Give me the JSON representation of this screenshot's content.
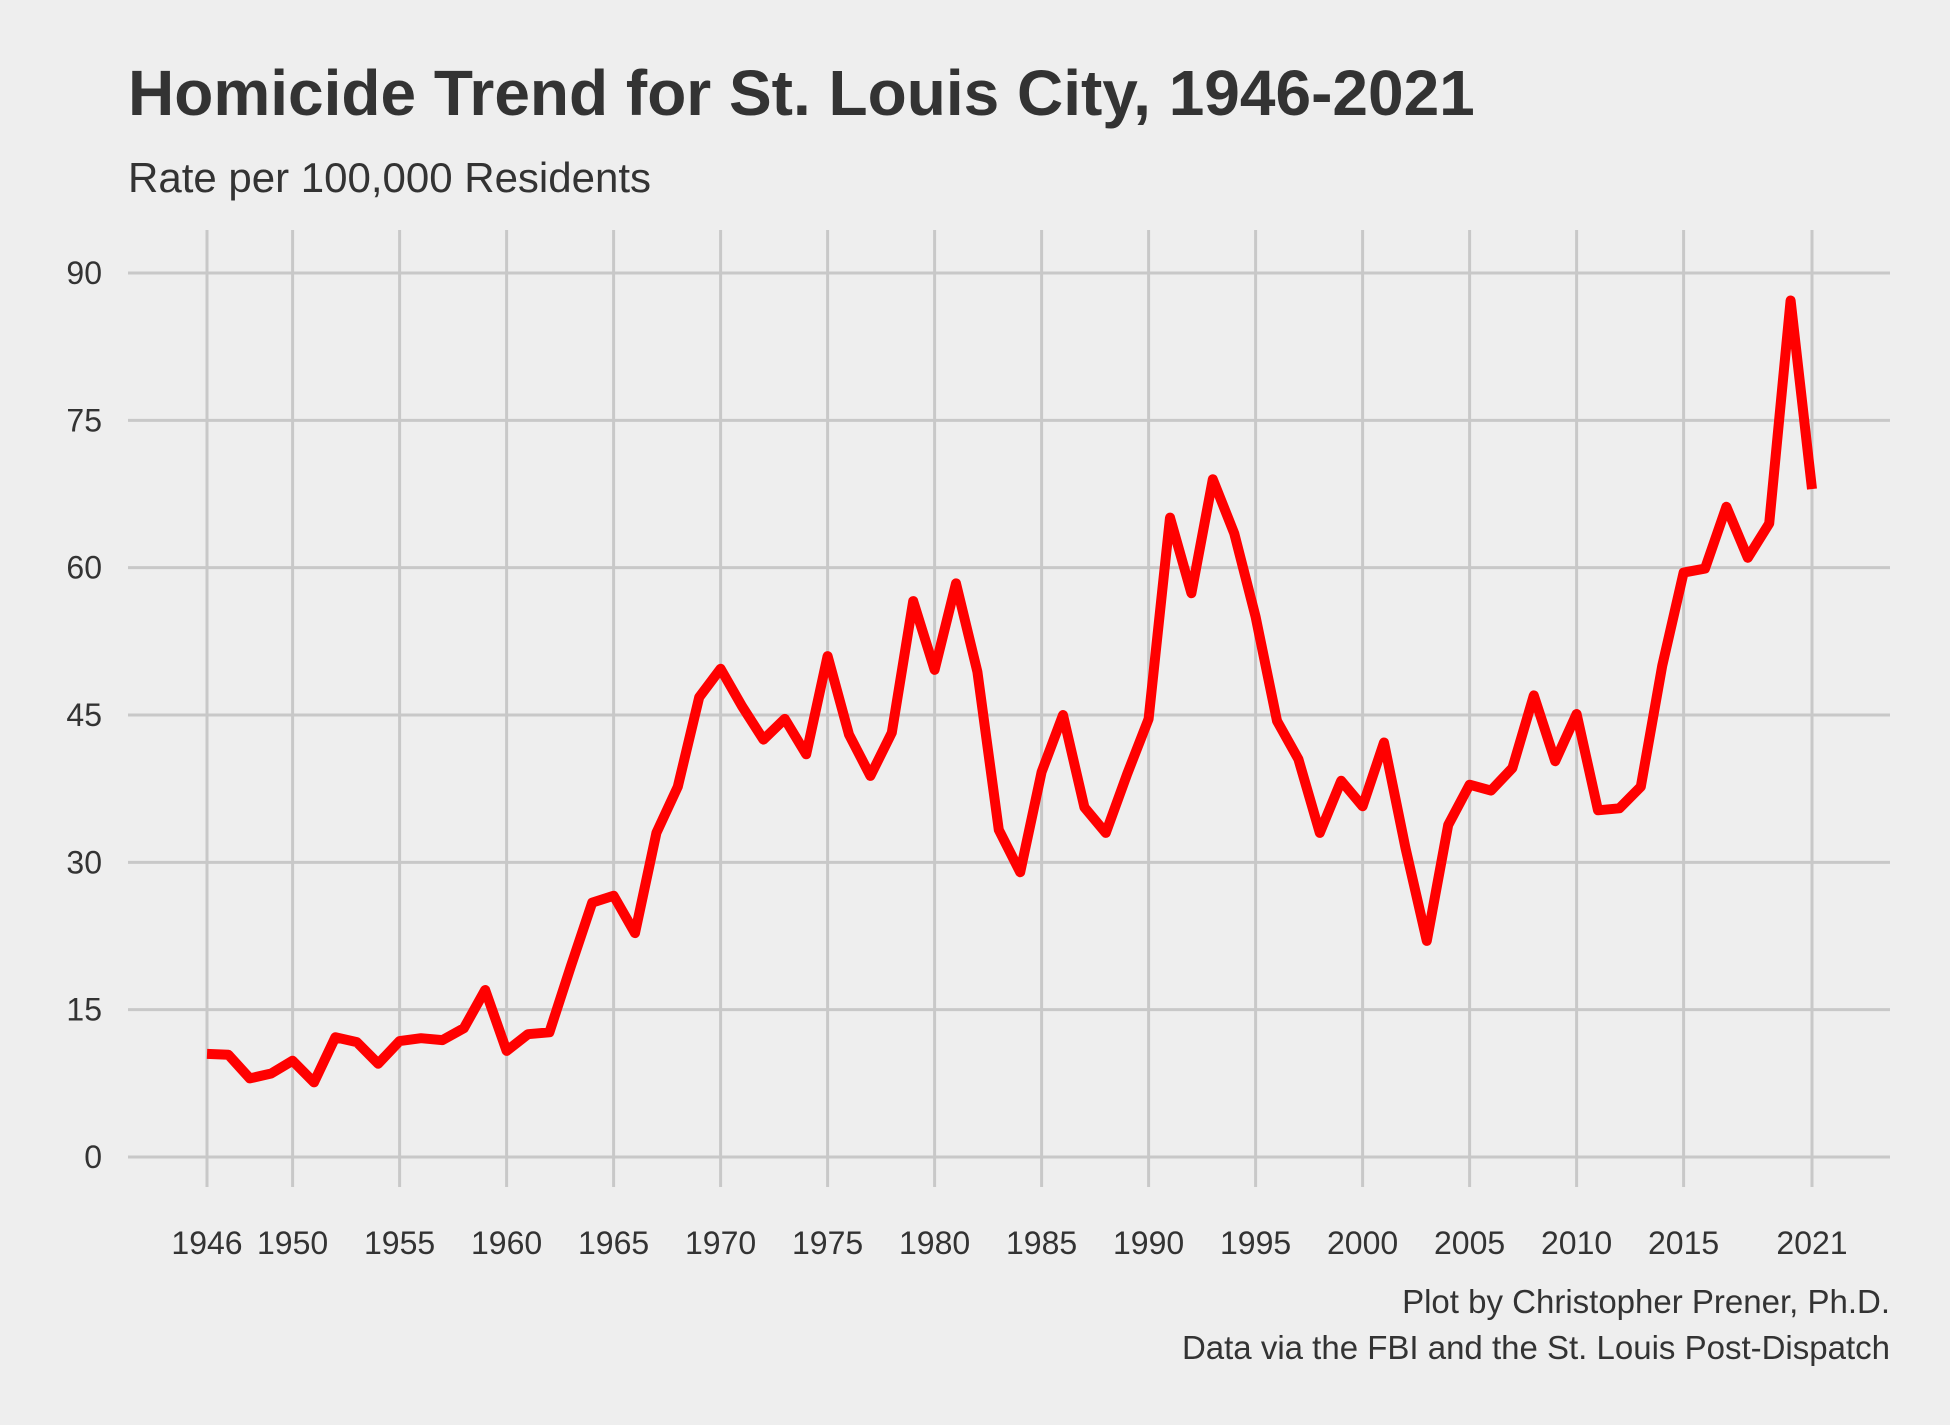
{
  "chart_data": {
    "type": "line",
    "title": "Homicide Trend for St. Louis City, 1946-2021",
    "subtitle": "Rate per 100,000 Residents",
    "xlabel": "",
    "ylabel": "",
    "xlim": [
      1946,
      2021
    ],
    "ylim": [
      0,
      90
    ],
    "x_ticks": [
      1946,
      1950,
      1955,
      1960,
      1965,
      1970,
      1975,
      1980,
      1985,
      1990,
      1995,
      2000,
      2005,
      2010,
      2015,
      2021
    ],
    "x_tick_labels": [
      "1946",
      "1950",
      "1955",
      "1960",
      "1965",
      "1970",
      "1975",
      "1980",
      "1985",
      "1990",
      "1995",
      "2000",
      "2005",
      "2010",
      "2015",
      "2021"
    ],
    "y_ticks": [
      0,
      15,
      30,
      45,
      60,
      75,
      90
    ],
    "y_tick_labels": [
      "0",
      "15",
      "30",
      "45",
      "60",
      "75",
      "90"
    ],
    "grid": true,
    "legend": "none",
    "caption": [
      "Plot by Christopher Prener, Ph.D.",
      "Data via the FBI and the St. Louis Post-Dispatch"
    ],
    "colors": {
      "background": "#eeeeee",
      "grid": "#c8c8c8",
      "text": "#333333",
      "series": "#ff0000"
    },
    "series": [
      {
        "x": [
          1946,
          1947,
          1948,
          1949,
          1950,
          1951,
          1952,
          1953,
          1954,
          1955,
          1956,
          1957,
          1958,
          1959,
          1960,
          1961,
          1962,
          1963,
          1964,
          1965,
          1966,
          1967,
          1968,
          1969,
          1970,
          1971,
          1972,
          1973,
          1974,
          1975,
          1976,
          1977,
          1978,
          1979,
          1980,
          1981,
          1982,
          1983,
          1984,
          1985,
          1986,
          1987,
          1988,
          1989,
          1990,
          1991,
          1992,
          1993,
          1994,
          1995,
          1996,
          1997,
          1998,
          1999,
          2000,
          2001,
          2002,
          2003,
          2004,
          2005,
          2006,
          2007,
          2008,
          2009,
          2010,
          2011,
          2012,
          2013,
          2014,
          2015,
          2016,
          2017,
          2018,
          2019,
          2020,
          2021
        ],
        "y": [
          10.5,
          10.4,
          8.0,
          8.5,
          9.8,
          7.6,
          12.2,
          11.7,
          9.5,
          11.8,
          12.1,
          11.9,
          13.1,
          17.0,
          10.8,
          12.5,
          12.7,
          19.4,
          25.9,
          26.6,
          22.8,
          33.0,
          37.7,
          46.8,
          49.7,
          45.9,
          42.5,
          44.6,
          41.0,
          51.0,
          43.0,
          38.8,
          43.2,
          56.6,
          49.6,
          58.4,
          49.4,
          33.3,
          29.0,
          39.2,
          45.0,
          35.6,
          33.0,
          39.0,
          44.6,
          65.1,
          57.4,
          69.0,
          63.5,
          55.0,
          44.4,
          40.5,
          33.0,
          38.3,
          35.7,
          42.2,
          31.5,
          22.0,
          33.8,
          37.9,
          37.3,
          39.6,
          47.0,
          40.3,
          45.1,
          35.3,
          35.5,
          37.7,
          50.0,
          59.5,
          59.9,
          66.2,
          61.0,
          64.5,
          87.2,
          68.0
        ]
      }
    ]
  }
}
